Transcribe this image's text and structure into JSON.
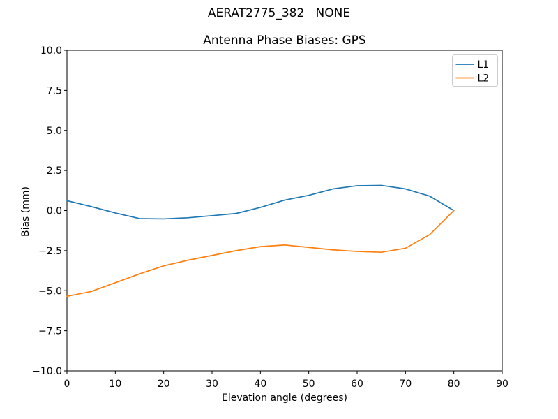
{
  "figure": {
    "suptitle": "AERAT2775_382   NONE",
    "background": "#ffffff"
  },
  "chart_data": {
    "type": "line",
    "title": "Antenna Phase Biases: GPS",
    "xlabel": "Elevation angle (degrees)",
    "ylabel": "Bias (mm)",
    "xlim": [
      0,
      90
    ],
    "ylim": [
      -10,
      10
    ],
    "xticks": [
      0,
      10,
      20,
      30,
      40,
      50,
      60,
      70,
      80,
      90
    ],
    "yticks": [
      -10.0,
      -7.5,
      -5.0,
      -2.5,
      0.0,
      2.5,
      5.0,
      7.5,
      10.0
    ],
    "grid": false,
    "legend_position": "upper right",
    "axis_color": "#000000",
    "legend_border_color": "#cccccc",
    "x": [
      0,
      5,
      10,
      15,
      20,
      25,
      30,
      35,
      40,
      45,
      50,
      55,
      60,
      65,
      70,
      75,
      80
    ],
    "series": [
      {
        "name": "L1",
        "color": "#1f77b4",
        "values": [
          0.62,
          0.25,
          -0.15,
          -0.5,
          -0.52,
          -0.45,
          -0.32,
          -0.18,
          0.2,
          0.65,
          0.95,
          1.35,
          1.55,
          1.57,
          1.35,
          0.9,
          0.0
        ]
      },
      {
        "name": "L2",
        "color": "#ff7f0e",
        "values": [
          -5.35,
          -5.05,
          -4.5,
          -3.95,
          -3.45,
          -3.1,
          -2.8,
          -2.5,
          -2.25,
          -2.15,
          -2.3,
          -2.45,
          -2.55,
          -2.6,
          -2.35,
          -1.5,
          0.0
        ]
      }
    ]
  }
}
